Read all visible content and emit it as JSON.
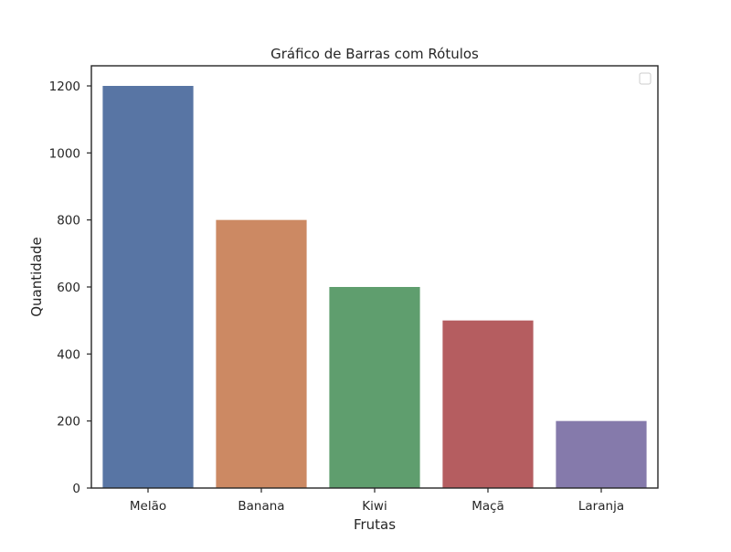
{
  "chart_data": {
    "type": "bar",
    "title": "Gráfico de Barras com Rótulos",
    "xlabel": "Frutas",
    "ylabel": "Quantidade",
    "categories": [
      "Melão",
      "Banana",
      "Kiwi",
      "Maçã",
      "Laranja"
    ],
    "values": [
      1200,
      800,
      600,
      500,
      200
    ],
    "colors": [
      "#5875a4",
      "#cc8963",
      "#5f9e6e",
      "#b55d60",
      "#857aab"
    ],
    "ylim": [
      0,
      1260
    ],
    "yticks": [
      0,
      200,
      400,
      600,
      800,
      1000,
      1200
    ],
    "grid": false,
    "legend": {
      "location": "top-right",
      "entries": []
    }
  }
}
